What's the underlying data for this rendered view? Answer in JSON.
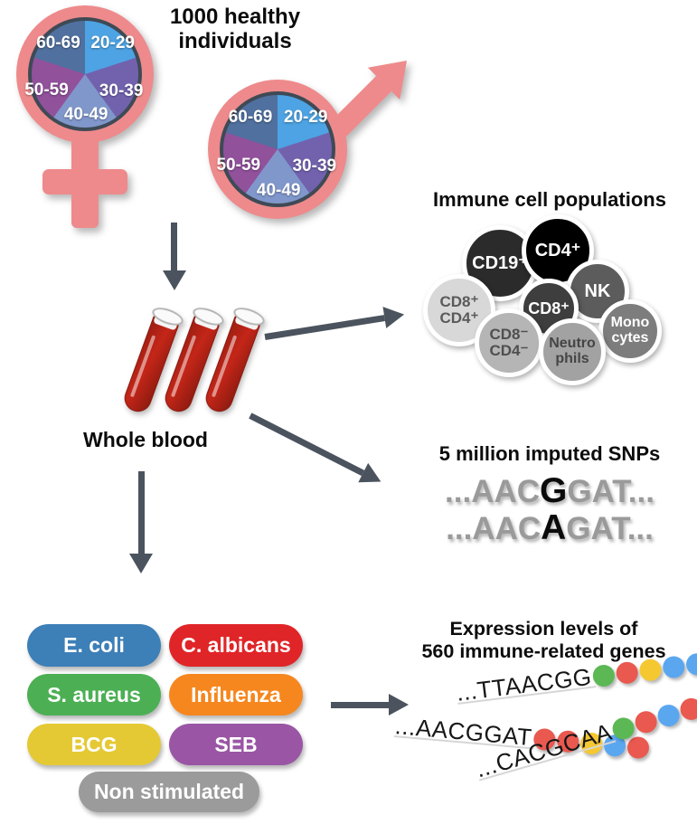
{
  "heading": "1000 healthy\nindividuals",
  "arrow_color": "#4B535E",
  "demographics": {
    "symbol_color": "#EE8A8C",
    "age_groups": [
      {
        "label": "20-29",
        "color": "#4DA3E3"
      },
      {
        "label": "30-39",
        "color": "#7262AE"
      },
      {
        "label": "40-49",
        "color": "#8097CB"
      },
      {
        "label": "50-59",
        "color": "#91519B"
      },
      {
        "label": "60-69",
        "color": "#50709F"
      }
    ]
  },
  "whole_blood_label": "Whole blood",
  "immune_cells": {
    "title": "Immune cell populations",
    "cells": [
      {
        "label": "CD19⁺",
        "color": "#2B2B2B",
        "text_color": "#FFFFFF"
      },
      {
        "label": "CD4⁺",
        "color": "#000000",
        "text_color": "#FFFFFF"
      },
      {
        "label": "NK",
        "color": "#5C5C5C",
        "text_color": "#FFFFFF"
      },
      {
        "label": "Mono\ncytes",
        "color": "#7D7D7D",
        "text_color": "#FFFFFF"
      },
      {
        "label": "CD8⁺",
        "color": "#3E3E3E",
        "text_color": "#FFFFFF"
      },
      {
        "label": "CD8⁺\nCD4⁺",
        "color": "#D8D8D8",
        "text_color": "#5A5A5A"
      },
      {
        "label": "CD8⁻\nCD4⁻",
        "color": "#B5B5B5",
        "text_color": "#4F4F4F"
      },
      {
        "label": "Neutro\nphils",
        "color": "#A2A2A2",
        "text_color": "#454545"
      }
    ]
  },
  "snps": {
    "title": "5 million imputed SNPs",
    "sequences": [
      {
        "prefix": "...AAC",
        "variant": "G",
        "suffix": "GAT..."
      },
      {
        "prefix": "...AAC",
        "variant": "A",
        "suffix": "GAT..."
      }
    ]
  },
  "stimuli": [
    {
      "label": "E. coli",
      "color": "#3D7FB7"
    },
    {
      "label": "C. albicans",
      "color": "#E02528"
    },
    {
      "label": "S. aureus",
      "color": "#4CAF54"
    },
    {
      "label": "Influenza",
      "color": "#F6871F"
    },
    {
      "label": "BCG",
      "color": "#E5C934"
    },
    {
      "label": "SEB",
      "color": "#9A56A5"
    },
    {
      "label": "Non stimulated",
      "color": "#9B9B9B"
    }
  ],
  "expression": {
    "title": "Expression levels of\n560 immune-related genes",
    "dot_colors": {
      "green": "#5CB854",
      "red": "#E9594F",
      "yellow": "#F5C832",
      "blue": "#5AA7F0"
    },
    "strands": [
      {
        "sequence": "...TTAACGG",
        "dots": [
          "green",
          "red",
          "yellow",
          "blue",
          "blue"
        ]
      },
      {
        "sequence": "...AACGGAT",
        "dots": [
          "red",
          "red",
          "yellow",
          "blue",
          "red"
        ]
      },
      {
        "sequence": "...CACGCAA",
        "dots": [
          "green",
          "red",
          "blue",
          "red",
          "red"
        ]
      }
    ]
  }
}
